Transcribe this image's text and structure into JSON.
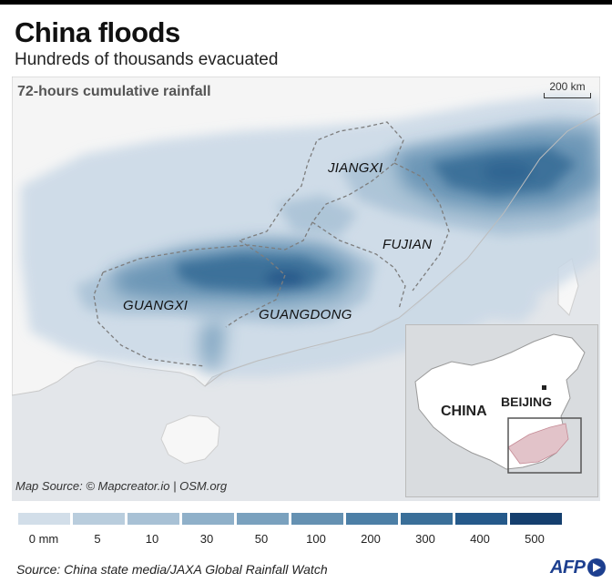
{
  "header": {
    "title": "China floods",
    "subtitle": "Hundreds of thousands evacuated"
  },
  "map": {
    "label": "72-hours cumulative rainfall",
    "scale_label": "200 km",
    "provinces": {
      "jiangxi": "JIANGXI",
      "fujian": "FUJIAN",
      "guangxi": "GUANGXI",
      "guangdong": "GUANGDONG"
    },
    "source": "Map Source: © Mapcreator.io | OSM.org",
    "inset": {
      "country": "CHINA",
      "capital": "BEIJING"
    }
  },
  "legend": {
    "levels": [
      "0 mm",
      "5",
      "10",
      "30",
      "50",
      "100",
      "200",
      "300",
      "400",
      "500"
    ],
    "colors": [
      "#d2dee9",
      "#b9cddd",
      "#a8c1d5",
      "#8fb0c9",
      "#7aa1be",
      "#6591b2",
      "#4c7fa6",
      "#3a6f99",
      "#25598a",
      "#153f6e"
    ]
  },
  "footer": {
    "source": "Source: China state media/JAXA Global Rainfall Watch",
    "logo": "AFP"
  },
  "colors": {
    "land": "#f4f4f4",
    "sea": "#e3e6ea",
    "rain_light": "#c9d8e6",
    "rain_dark": "#25598a"
  }
}
